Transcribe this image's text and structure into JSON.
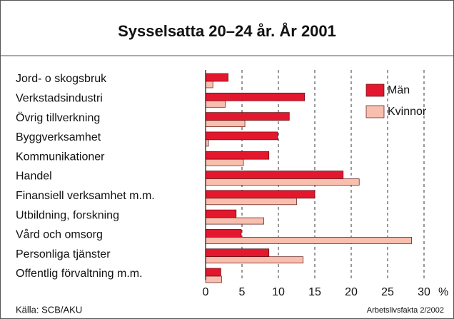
{
  "chart_data": {
    "type": "bar",
    "orientation": "horizontal",
    "title": "Sysselsatta 20–24 år. År 2001",
    "categories": [
      "Jord- o skogsbruk",
      "Verkstadsindustri",
      "Övrig tillverkning",
      "Byggverksamhet",
      "Kommunikationer",
      "Handel",
      "Finansiell verksamhet m.m.",
      "Utbildning, forskning",
      "Vård och omsorg",
      "Personliga tjänster",
      "Offentlig förvaltning m.m."
    ],
    "series": [
      {
        "name": "Män",
        "color": "#e3172d",
        "values": [
          3.1,
          13.6,
          11.5,
          9.9,
          8.7,
          18.9,
          15.0,
          4.2,
          4.9,
          8.7,
          2.1
        ]
      },
      {
        "name": "Kvinnor",
        "color": "#f8bfae",
        "values": [
          1.0,
          2.7,
          5.4,
          0.4,
          5.2,
          21.1,
          12.5,
          8.0,
          28.3,
          13.4,
          2.2
        ]
      }
    ],
    "xlim": [
      0,
      30
    ],
    "xticks": [
      0,
      5,
      10,
      15,
      20,
      25,
      30
    ],
    "x_unit": "%",
    "grid": true,
    "source": "Källa: SCB/AKU",
    "credit": "Arbetslivsfakta 2/2002"
  }
}
